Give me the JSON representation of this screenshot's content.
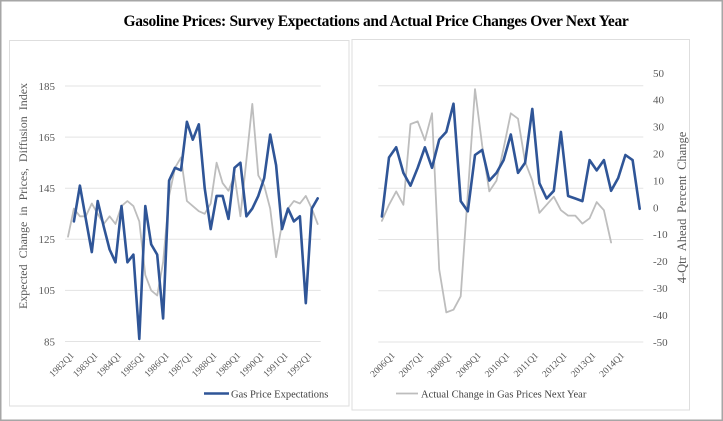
{
  "title": "Gasoline Prices: Survey Expectations and Actual Price Changes Over Next Year",
  "chart_data": [
    {
      "type": "line",
      "panel": "left",
      "x": [
        "1982Q1",
        "1982Q2",
        "1982Q3",
        "1982Q4",
        "1983Q1",
        "1983Q2",
        "1983Q3",
        "1983Q4",
        "1984Q1",
        "1984Q2",
        "1984Q3",
        "1984Q4",
        "1985Q1",
        "1985Q2",
        "1985Q3",
        "1985Q4",
        "1986Q1",
        "1986Q2",
        "1986Q3",
        "1986Q4",
        "1987Q1",
        "1987Q2",
        "1987Q3",
        "1987Q4",
        "1988Q1",
        "1988Q2",
        "1988Q3",
        "1988Q4",
        "1989Q1",
        "1989Q2",
        "1989Q3",
        "1989Q4",
        "1990Q1",
        "1990Q2",
        "1990Q3",
        "1990Q4",
        "1991Q1",
        "1991Q2",
        "1991Q3",
        "1991Q4",
        "1992Q1",
        "1992Q2",
        "1992Q3"
      ],
      "x_tick_labels": [
        "1982Q1",
        "1983Q1",
        "1984Q1",
        "1985Q1",
        "1986Q1",
        "1987Q1",
        "1988Q1",
        "1989Q1",
        "1990Q1",
        "1991Q1",
        "1992Q1"
      ],
      "xlabel": "",
      "ylabel": "Expected Change in Prices, Diffusion Index",
      "ylim": [
        85,
        185
      ],
      "yticks": [
        85,
        105,
        125,
        145,
        165,
        185
      ],
      "yticks_visible": true,
      "grid": true,
      "legend": [
        "Gas Price Expectations"
      ],
      "legend_position": "bottom-right",
      "series": [
        {
          "name": "Gas Price Expectations",
          "axis": "left",
          "color": "#2F5597",
          "values": [
            null,
            132,
            146,
            133,
            120,
            140,
            130,
            121,
            116,
            138,
            116,
            119,
            86,
            138,
            123,
            119,
            94,
            148,
            153,
            152,
            171,
            164,
            170,
            145,
            129,
            142,
            142,
            133,
            153,
            155,
            134,
            137,
            142,
            149,
            166,
            154,
            129,
            137,
            132,
            134,
            100,
            137,
            141
          ]
        },
        {
          "name": "Actual Change in Gas Prices Next Year",
          "axis": "left",
          "color": "#BDBDBD",
          "values": [
            126,
            137,
            134,
            134,
            139,
            135,
            131,
            134,
            131,
            138,
            140,
            138,
            132,
            111,
            105,
            103,
            116,
            142,
            153,
            157,
            140,
            138,
            136,
            135,
            139,
            155,
            147,
            144,
            150,
            134,
            156,
            178,
            150,
            146,
            137,
            118,
            131,
            137,
            140,
            139,
            142,
            137,
            131
          ]
        }
      ]
    },
    {
      "type": "line",
      "panel": "right",
      "x": [
        "2005Q4",
        "2006Q1",
        "2006Q2",
        "2006Q3",
        "2006Q4",
        "2007Q1",
        "2007Q2",
        "2007Q3",
        "2007Q4",
        "2008Q1",
        "2008Q2",
        "2008Q3",
        "2008Q4",
        "2009Q1",
        "2009Q2",
        "2009Q3",
        "2009Q4",
        "2010Q1",
        "2010Q2",
        "2010Q3",
        "2010Q4",
        "2011Q1",
        "2011Q2",
        "2011Q3",
        "2011Q4",
        "2012Q1",
        "2012Q2",
        "2012Q3",
        "2012Q4",
        "2013Q1",
        "2013Q2",
        "2013Q3",
        "2013Q4",
        "2014Q1",
        "2014Q2",
        "2014Q3",
        "2014Q4"
      ],
      "x_tick_labels": [
        "2006Q1",
        "2007Q1",
        "2008Q1",
        "2009Q1",
        "2010Q1",
        "2011Q1",
        "2012Q1",
        "2013Q1",
        "2014Q1"
      ],
      "xlabel": "",
      "ylabel": "",
      "ylim": [
        85,
        190
      ],
      "yticks": [
        85,
        105,
        125,
        145,
        165,
        185
      ],
      "yticks_visible": false,
      "y2label": "4-Qtr Ahead Percent Change",
      "y2lim": [
        -50,
        50
      ],
      "y2ticks": [
        -50,
        -40,
        -30,
        -20,
        -10,
        0,
        10,
        20,
        30,
        40,
        50
      ],
      "grid": true,
      "legend": [
        "Actual Change in Gas Prices Next Year"
      ],
      "legend_position": "bottom",
      "series": [
        {
          "name": "Gas Price Expectations",
          "axis": "left",
          "color": "#2F5597",
          "values": [
            134,
            157,
            161,
            151,
            146,
            153,
            161,
            153,
            164,
            167,
            178,
            140,
            136,
            158,
            160,
            148,
            151,
            156,
            166,
            151,
            155,
            176,
            147,
            141,
            144,
            167,
            142,
            141,
            140,
            156,
            152,
            156,
            144,
            149,
            158,
            156,
            137
          ]
        },
        {
          "name": "Actual Change in Gas Prices Next Year",
          "axis": "right",
          "color": "#BDBDBD",
          "values": [
            -5,
            1,
            6,
            1,
            31,
            32,
            25,
            35,
            -23,
            -39,
            -38,
            -33,
            5,
            44,
            23,
            6,
            10,
            22,
            35,
            33,
            17,
            10,
            -2,
            1,
            4,
            -1,
            -3,
            -3,
            -6,
            -4,
            2,
            -1,
            -13,
            null,
            null,
            null,
            null
          ]
        }
      ]
    }
  ]
}
